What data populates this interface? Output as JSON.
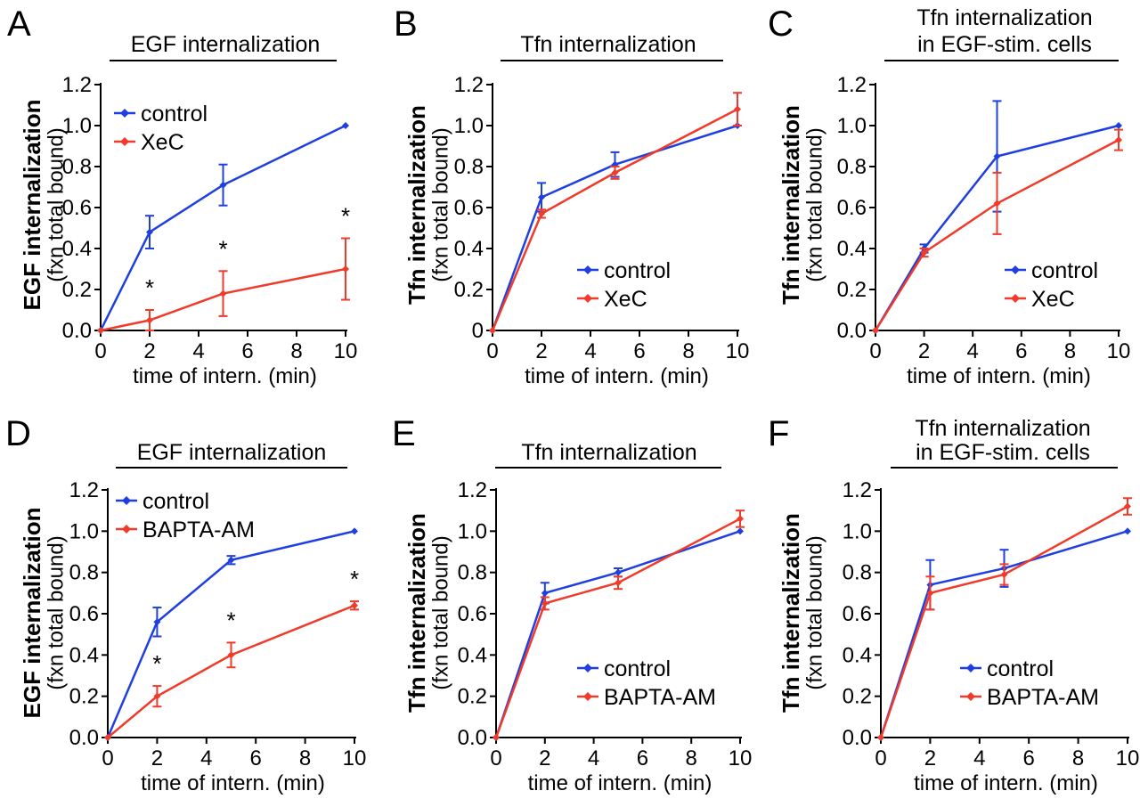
{
  "figure": {
    "description_panels": [
      "A",
      "B",
      "C",
      "D",
      "E",
      "F"
    ]
  },
  "colors": {
    "control": "#1f3fe0",
    "treated": "#f03a2a",
    "axis": "#000000"
  },
  "chart_data": [
    {
      "panel": "A",
      "type": "line",
      "title": [
        "EGF internalization"
      ],
      "ylabel_main": "EGF internalization",
      "ylabel_sub": "(fxn total bound)",
      "xlabel": "time of intern. (min)",
      "x": [
        0,
        2,
        5,
        10
      ],
      "xlim": [
        0,
        10
      ],
      "ylim": [
        0,
        1.2
      ],
      "xticks": [
        "0",
        "2",
        "4",
        "6",
        "8",
        "10"
      ],
      "yticks": [
        "0.0",
        "0.2",
        "0.4",
        "0.6",
        "0.8",
        "1.0",
        "1.2"
      ],
      "legend_position": "top-left",
      "series": [
        {
          "name": "control",
          "color": "#1f3fe0",
          "values": [
            0,
            0.48,
            0.71,
            1.0
          ],
          "errors": [
            0,
            0.08,
            0.1,
            0
          ]
        },
        {
          "name": "XeC",
          "color": "#f03a2a",
          "values": [
            0,
            0.05,
            0.18,
            0.3
          ],
          "errors": [
            0,
            0.05,
            0.11,
            0.15
          ]
        }
      ],
      "annotations": [
        {
          "x": 2,
          "text": "*"
        },
        {
          "x": 5,
          "text": "*"
        },
        {
          "x": 10,
          "text": "*"
        }
      ]
    },
    {
      "panel": "B",
      "type": "line",
      "title": [
        "Tfn internalization"
      ],
      "ylabel_main": "Tfn internalization",
      "ylabel_sub": "(fxn total bound)",
      "xlabel": "time of intern. (min)",
      "x": [
        0,
        2,
        5,
        10
      ],
      "xlim": [
        0,
        10
      ],
      "ylim": [
        0,
        1.2
      ],
      "xticks": [
        "0",
        "2",
        "4",
        "6",
        "8",
        "10"
      ],
      "yticks": [
        "0",
        "0.2",
        "0.4",
        "0.6",
        "0.8",
        "1.0",
        "1.2"
      ],
      "legend_position": "bottom-right",
      "series": [
        {
          "name": "control",
          "color": "#1f3fe0",
          "values": [
            0,
            0.65,
            0.81,
            1.0
          ],
          "errors": [
            0,
            0.07,
            0.06,
            0
          ]
        },
        {
          "name": "XeC",
          "color": "#f03a2a",
          "values": [
            0,
            0.57,
            0.77,
            1.08
          ],
          "errors": [
            0,
            0.02,
            0.03,
            0.08
          ]
        }
      ],
      "annotations": []
    },
    {
      "panel": "C",
      "type": "line",
      "title": [
        "Tfn internalization",
        "in EGF-stim. cells"
      ],
      "ylabel_main": "Tfn internalization",
      "ylabel_sub": "(fxn total bound)",
      "xlabel": "time of intern. (min)",
      "x": [
        0,
        2,
        5,
        10
      ],
      "xlim": [
        0,
        10
      ],
      "ylim": [
        0,
        1.2
      ],
      "xticks": [
        "0",
        "2",
        "4",
        "6",
        "8",
        "10"
      ],
      "yticks": [
        "0.0",
        "0.2",
        "0.4",
        "0.6",
        "0.8",
        "1.0",
        "1.2"
      ],
      "legend_position": "bottom-right",
      "series": [
        {
          "name": "control",
          "color": "#1f3fe0",
          "values": [
            0,
            0.4,
            0.85,
            1.0
          ],
          "errors": [
            0,
            0.02,
            0.27,
            0
          ]
        },
        {
          "name": "XeC",
          "color": "#f03a2a",
          "values": [
            0,
            0.38,
            0.62,
            0.93
          ],
          "errors": [
            0,
            0.02,
            0.15,
            0.05
          ]
        }
      ],
      "annotations": []
    },
    {
      "panel": "D",
      "type": "line",
      "title": [
        "EGF internalization"
      ],
      "ylabel_main": "EGF internalization",
      "ylabel_sub": "(fxn total bound)",
      "xlabel": "time of intern. (min)",
      "x": [
        0,
        2,
        5,
        10
      ],
      "xlim": [
        0,
        10
      ],
      "ylim": [
        0,
        1.2
      ],
      "xticks": [
        "0",
        "2",
        "4",
        "6",
        "8",
        "10"
      ],
      "yticks": [
        "0.0",
        "0.2",
        "0.4",
        "0.6",
        "0.8",
        "1.0",
        "1.2"
      ],
      "legend_position": "top-left",
      "series": [
        {
          "name": "control",
          "color": "#1f3fe0",
          "values": [
            0,
            0.56,
            0.86,
            1.0
          ],
          "errors": [
            0,
            0.07,
            0.02,
            0
          ]
        },
        {
          "name": "BAPTA-AM",
          "color": "#f03a2a",
          "values": [
            0,
            0.2,
            0.4,
            0.64
          ],
          "errors": [
            0,
            0.05,
            0.06,
            0.02
          ]
        }
      ],
      "annotations": [
        {
          "x": 2,
          "text": "*"
        },
        {
          "x": 5,
          "text": "*"
        },
        {
          "x": 10,
          "text": "*"
        }
      ]
    },
    {
      "panel": "E",
      "type": "line",
      "title": [
        "Tfn internalization"
      ],
      "ylabel_main": "Tfn internalization",
      "ylabel_sub": "(fxn total bound)",
      "xlabel": "time of intern. (min)",
      "x": [
        0,
        2,
        5,
        10
      ],
      "xlim": [
        0,
        10
      ],
      "ylim": [
        0,
        1.2
      ],
      "xticks": [
        "0",
        "2",
        "4",
        "6",
        "8",
        "10"
      ],
      "yticks": [
        "0.0",
        "0.2",
        "0.4",
        "0.6",
        "0.8",
        "1.0",
        "1.2"
      ],
      "legend_position": "bottom-right",
      "series": [
        {
          "name": "control",
          "color": "#1f3fe0",
          "values": [
            0,
            0.7,
            0.8,
            1.0
          ],
          "errors": [
            0,
            0.05,
            0.02,
            0
          ]
        },
        {
          "name": "BAPTA-AM",
          "color": "#f03a2a",
          "values": [
            0,
            0.65,
            0.75,
            1.06
          ],
          "errors": [
            0,
            0.03,
            0.03,
            0.04
          ]
        }
      ],
      "annotations": []
    },
    {
      "panel": "F",
      "type": "line",
      "title": [
        "Tfn internalization",
        "in EGF-stim. cells"
      ],
      "ylabel_main": "Tfn internalization",
      "ylabel_sub": "(fxn total bound)",
      "xlabel": "time of intern. (min)",
      "x": [
        0,
        2,
        5,
        10
      ],
      "xlim": [
        0,
        10
      ],
      "ylim": [
        0,
        1.2
      ],
      "xticks": [
        "0",
        "2",
        "4",
        "6",
        "8",
        "10"
      ],
      "yticks": [
        "0.0",
        "0.2",
        "0.4",
        "0.6",
        "0.8",
        "1.0",
        "1.2"
      ],
      "legend_position": "bottom-right",
      "series": [
        {
          "name": "control",
          "color": "#1f3fe0",
          "values": [
            0,
            0.74,
            0.82,
            1.0
          ],
          "errors": [
            0,
            0.12,
            0.09,
            0
          ]
        },
        {
          "name": "BAPTA-AM",
          "color": "#f03a2a",
          "values": [
            0,
            0.7,
            0.79,
            1.12
          ],
          "errors": [
            0,
            0.08,
            0.05,
            0.04
          ]
        }
      ],
      "annotations": []
    }
  ]
}
